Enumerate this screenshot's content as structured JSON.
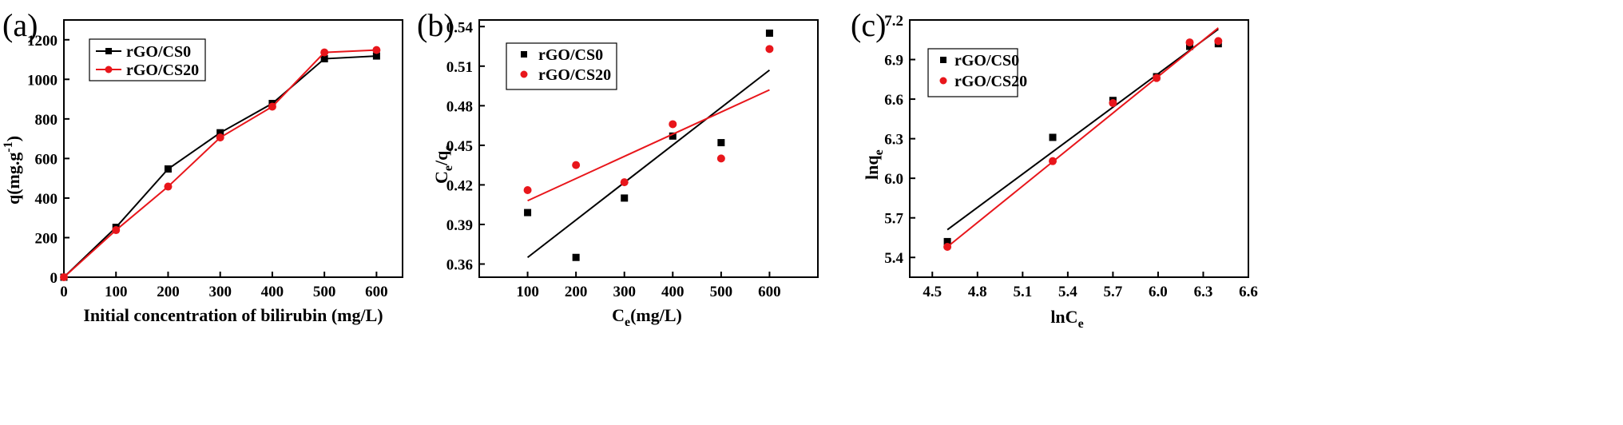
{
  "chart_data": [
    {
      "type": "line",
      "panel_label": "(a)",
      "xlabel": "Initial concentration of bilirubin (mg/L)",
      "ylabel": "q(mg.g-1)",
      "ylabel_main": "q(mg.g",
      "ylabel_sup": "-1",
      "ylabel_close": ")",
      "xlim": [
        0,
        650
      ],
      "ylim": [
        0,
        1300
      ],
      "xticks": [
        0,
        100,
        200,
        300,
        400,
        500,
        600
      ],
      "yticks": [
        0,
        200,
        400,
        600,
        800,
        1000,
        1200
      ],
      "legend_position": "top-left",
      "series": [
        {
          "name": "rGO/CS0",
          "color": "#000000",
          "marker": "square",
          "x": [
            0,
            100,
            200,
            300,
            400,
            500,
            600
          ],
          "y": [
            0,
            252,
            547,
            730,
            878,
            1104,
            1118
          ]
        },
        {
          "name": "rGO/CS20",
          "color": "#e8161b",
          "marker": "circle",
          "x": [
            0,
            100,
            200,
            300,
            400,
            500,
            600
          ],
          "y": [
            0,
            238,
            458,
            706,
            862,
            1136,
            1148
          ]
        }
      ]
    },
    {
      "type": "scatter",
      "panel_label": "(b)",
      "xlabel": "Ce(mg/L)",
      "xlabel_main": "C",
      "xlabel_sub": "e",
      "xlabel_tail": "(mg/L)",
      "ylabel": "Ce/qe",
      "ylabel_parts": [
        "C",
        "e",
        "/q",
        "e"
      ],
      "xlim": [
        0,
        700
      ],
      "ylim": [
        0.35,
        0.545
      ],
      "xticks": [
        100,
        200,
        300,
        400,
        500,
        600
      ],
      "yticks": [
        0.36,
        0.39,
        0.42,
        0.45,
        0.48,
        0.51,
        0.54
      ],
      "legend_position": "top-left",
      "series": [
        {
          "name": "rGO/CS0",
          "color": "#000000",
          "marker": "square",
          "x": [
            100,
            200,
            300,
            400,
            500,
            600
          ],
          "y": [
            0.399,
            0.365,
            0.41,
            0.457,
            0.452,
            0.535
          ],
          "fit": {
            "x": [
              100,
              600
            ],
            "y": [
              0.365,
              0.507
            ]
          }
        },
        {
          "name": "rGO/CS20",
          "color": "#e8161b",
          "marker": "circle",
          "x": [
            100,
            200,
            300,
            400,
            500,
            600
          ],
          "y": [
            0.416,
            0.435,
            0.422,
            0.466,
            0.44,
            0.523
          ],
          "fit": {
            "x": [
              100,
              600
            ],
            "y": [
              0.408,
              0.492
            ]
          }
        }
      ]
    },
    {
      "type": "scatter",
      "panel_label": "(c)",
      "xlabel": "lnCe",
      "xlabel_main": "lnC",
      "xlabel_sub": "e",
      "ylabel": "lnqe",
      "ylabel_main": "lnq",
      "ylabel_sub": "e",
      "xlim": [
        4.35,
        6.6
      ],
      "ylim": [
        5.25,
        7.2
      ],
      "xticks": [
        4.5,
        4.8,
        5.1,
        5.4,
        5.7,
        6.0,
        6.3,
        6.6
      ],
      "yticks": [
        5.4,
        5.7,
        6.0,
        6.3,
        6.6,
        6.9,
        7.2
      ],
      "legend_position": "top-left",
      "series": [
        {
          "name": "rGO/CS0",
          "color": "#000000",
          "marker": "square",
          "x": [
            4.6,
            5.3,
            5.7,
            5.99,
            6.21,
            6.4
          ],
          "y": [
            5.52,
            6.31,
            6.59,
            6.77,
            7.0,
            7.02
          ],
          "fit": {
            "x": [
              4.6,
              6.4
            ],
            "y": [
              5.61,
              7.13
            ]
          }
        },
        {
          "name": "rGO/CS20",
          "color": "#e8161b",
          "marker": "circle",
          "x": [
            4.6,
            5.3,
            5.7,
            5.99,
            6.21,
            6.4
          ],
          "y": [
            5.48,
            6.13,
            6.57,
            6.76,
            7.03,
            7.04
          ],
          "fit": {
            "x": [
              4.6,
              6.4
            ],
            "y": [
              5.48,
              7.14
            ]
          }
        }
      ]
    }
  ]
}
